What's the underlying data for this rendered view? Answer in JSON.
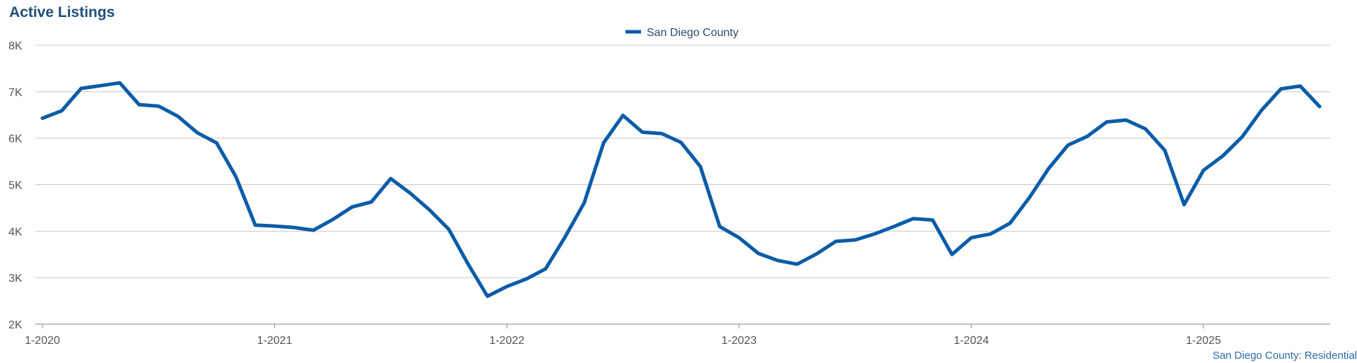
{
  "chart_data": {
    "type": "line",
    "title": "Active Listings",
    "source": "San Diego County: Residential",
    "x_dates": [
      "2020-01",
      "2020-02",
      "2020-03",
      "2020-04",
      "2020-05",
      "2020-06",
      "2020-07",
      "2020-08",
      "2020-09",
      "2020-10",
      "2020-11",
      "2020-12",
      "2021-01",
      "2021-02",
      "2021-03",
      "2021-04",
      "2021-05",
      "2021-06",
      "2021-07",
      "2021-08",
      "2021-09",
      "2021-10",
      "2021-11",
      "2021-12",
      "2022-01",
      "2022-02",
      "2022-03",
      "2022-04",
      "2022-05",
      "2022-06",
      "2022-07",
      "2022-08",
      "2022-09",
      "2022-10",
      "2022-11",
      "2022-12",
      "2023-01",
      "2023-02",
      "2023-03",
      "2023-04",
      "2023-05",
      "2023-06",
      "2023-07",
      "2023-08",
      "2023-09",
      "2023-10",
      "2023-11",
      "2023-12",
      "2024-01",
      "2024-02",
      "2024-03",
      "2024-04",
      "2024-05",
      "2024-06",
      "2024-07",
      "2024-08",
      "2024-09",
      "2024-10",
      "2024-11",
      "2024-12",
      "2025-01",
      "2025-02",
      "2025-03",
      "2025-04",
      "2025-05",
      "2025-06",
      "2025-07"
    ],
    "series": [
      {
        "name": "San Diego County",
        "color": "#0b5ca8",
        "values": [
          6430,
          6590,
          7070,
          7130,
          7190,
          6720,
          6690,
          6470,
          6120,
          5900,
          5170,
          4130,
          4110,
          4080,
          4020,
          4250,
          4520,
          4630,
          5130,
          4820,
          4460,
          4040,
          3290,
          2600,
          2810,
          2970,
          3190,
          3870,
          4610,
          5900,
          6490,
          6130,
          6100,
          5910,
          5390,
          4100,
          3860,
          3520,
          3370,
          3290,
          3510,
          3780,
          3810,
          3940,
          4100,
          4270,
          4240,
          3500,
          3860,
          3940,
          4170,
          4720,
          5350,
          5850,
          6040,
          6350,
          6390,
          6200,
          5740,
          4570,
          5310,
          5620,
          6030,
          6600,
          7060,
          7120,
          6680
        ]
      }
    ],
    "x_ticks": [
      "1-2020",
      "1-2021",
      "1-2022",
      "1-2023",
      "1-2024",
      "1-2025"
    ],
    "y_ticks": [
      "2K",
      "3K",
      "4K",
      "5K",
      "6K",
      "7K",
      "8K"
    ],
    "ylim": [
      2000,
      8000
    ],
    "grid": true,
    "legend": "top-center"
  }
}
